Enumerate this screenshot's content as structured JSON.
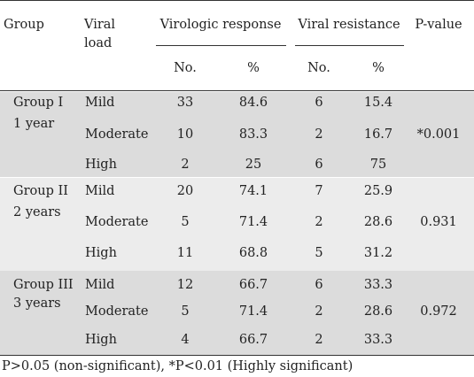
{
  "colors": {
    "band_dark": "#dcdcdc",
    "band_light": "#ececec",
    "rule": "#333333",
    "text": "#222222"
  },
  "header": {
    "group": "Group",
    "viral_load_line1": "Viral",
    "viral_load_line2": "load",
    "virologic_response": "Virologic response",
    "viral_resistance": "Viral resistance",
    "p_value": "P-value",
    "no_1": "No.",
    "pct_1": "%",
    "no_2": "No.",
    "pct_2": "%"
  },
  "groups": [
    {
      "name_line1": "Group I",
      "name_line2": "1 year",
      "p_value": "*0.001",
      "rows": [
        {
          "load": "Mild",
          "resp_no": "33",
          "resp_pct": "84.6",
          "res_no": "6",
          "res_pct": "15.4"
        },
        {
          "load": "Moderate",
          "resp_no": "10",
          "resp_pct": "83.3",
          "res_no": "2",
          "res_pct": "16.7"
        },
        {
          "load": "High",
          "resp_no": "2",
          "resp_pct": "25",
          "res_no": "6",
          "res_pct": "75"
        }
      ]
    },
    {
      "name_line1": "Group II",
      "name_line2": "2 years",
      "p_value": "0.931",
      "rows": [
        {
          "load": "Mild",
          "resp_no": "20",
          "resp_pct": "74.1",
          "res_no": "7",
          "res_pct": "25.9"
        },
        {
          "load": "Moderate",
          "resp_no": "5",
          "resp_pct": "71.4",
          "res_no": "2",
          "res_pct": "28.6"
        },
        {
          "load": "High",
          "resp_no": "11",
          "resp_pct": "68.8",
          "res_no": "5",
          "res_pct": "31.2"
        }
      ]
    },
    {
      "name_line1": "Group III",
      "name_line2": "3 years",
      "p_value": "0.972",
      "rows": [
        {
          "load": "Mild",
          "resp_no": "12",
          "resp_pct": "66.7",
          "res_no": "6",
          "res_pct": "33.3"
        },
        {
          "load": "Moderate",
          "resp_no": "5",
          "resp_pct": "71.4",
          "res_no": "2",
          "res_pct": "28.6"
        },
        {
          "load": "High",
          "resp_no": "4",
          "resp_pct": "66.7",
          "res_no": "2",
          "res_pct": "33.3"
        }
      ]
    }
  ],
  "footnote": "P>0.05 (non-significant), *P<0.01 (Highly significant)"
}
